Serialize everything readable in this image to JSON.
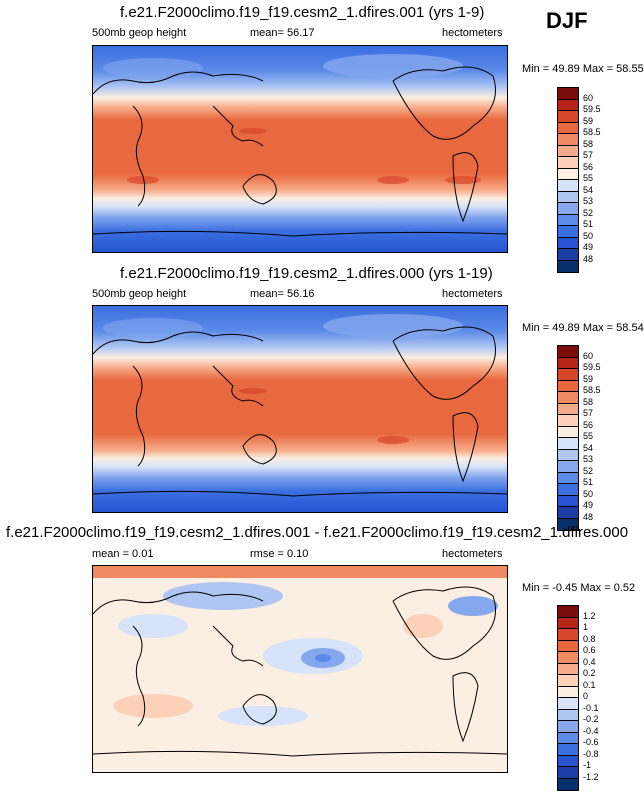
{
  "season": "DJF",
  "units": "hectometers",
  "colors": {
    "full": [
      "#08306b",
      "#1a3ea6",
      "#2553d1",
      "#3a6fe0",
      "#5b8ae8",
      "#84a7ee",
      "#afc6f3",
      "#d6e3f8",
      "#fbeee2",
      "#fcd1b8",
      "#f7ac89",
      "#f08a62",
      "#e8683f",
      "#d8462a",
      "#b52416",
      "#7a0c0a"
    ],
    "diff": [
      "#08306b",
      "#1a3ea6",
      "#2553d1",
      "#3a6fe0",
      "#5b8ae8",
      "#84a7ee",
      "#afc6f3",
      "#d6e3f8",
      "#fbeee2",
      "#fcd1b8",
      "#f7ac89",
      "#f08a62",
      "#e8683f",
      "#d8462a",
      "#b52416",
      "#7a0c0a"
    ]
  },
  "panels": [
    {
      "title": "f.e21.F2000climo.f19_f19.cesm2_1.dfires.001 (yrs 1-9)",
      "left_label": "500mb geop height",
      "center_label": "mean=  56.17",
      "right_label": "hectometers",
      "minmax": "Min = 49.89 Max = 58.55",
      "legend_ticks": [
        "60",
        "59.5",
        "59",
        "58.5",
        "58",
        "57",
        "56",
        "55",
        "54",
        "53",
        "52",
        "51",
        "50",
        "49",
        "48"
      ]
    },
    {
      "title": "f.e21.F2000climo.f19_f19.cesm2_1.dfires.000 (yrs 1-19)",
      "left_label": "500mb geop height",
      "center_label": "mean=  56.16",
      "right_label": "hectometers",
      "minmax": "Min = 49.89 Max = 58.54",
      "legend_ticks": [
        "60",
        "59.5",
        "59",
        "58.5",
        "58",
        "57",
        "56",
        "55",
        "54",
        "53",
        "52",
        "51",
        "50",
        "49",
        "48"
      ]
    },
    {
      "title": "f.e21.F2000climo.f19_f19.cesm2_1.dfires.001 - f.e21.F2000climo.f19_f19.cesm2_1.dfires.000",
      "left_label": "mean =   0.01",
      "center_label": "rmse =   0.10",
      "right_label": "hectometers",
      "minmax": "Min = -0.45 Max =  0.52",
      "legend_ticks": [
        "1.2",
        "1",
        "0.8",
        "0.6",
        "0.4",
        "0.2",
        "0.1",
        "0",
        "-0.1",
        "-0.2",
        "-0.4",
        "-0.6",
        "-0.8",
        "-1",
        "-1.2"
      ]
    }
  ]
}
